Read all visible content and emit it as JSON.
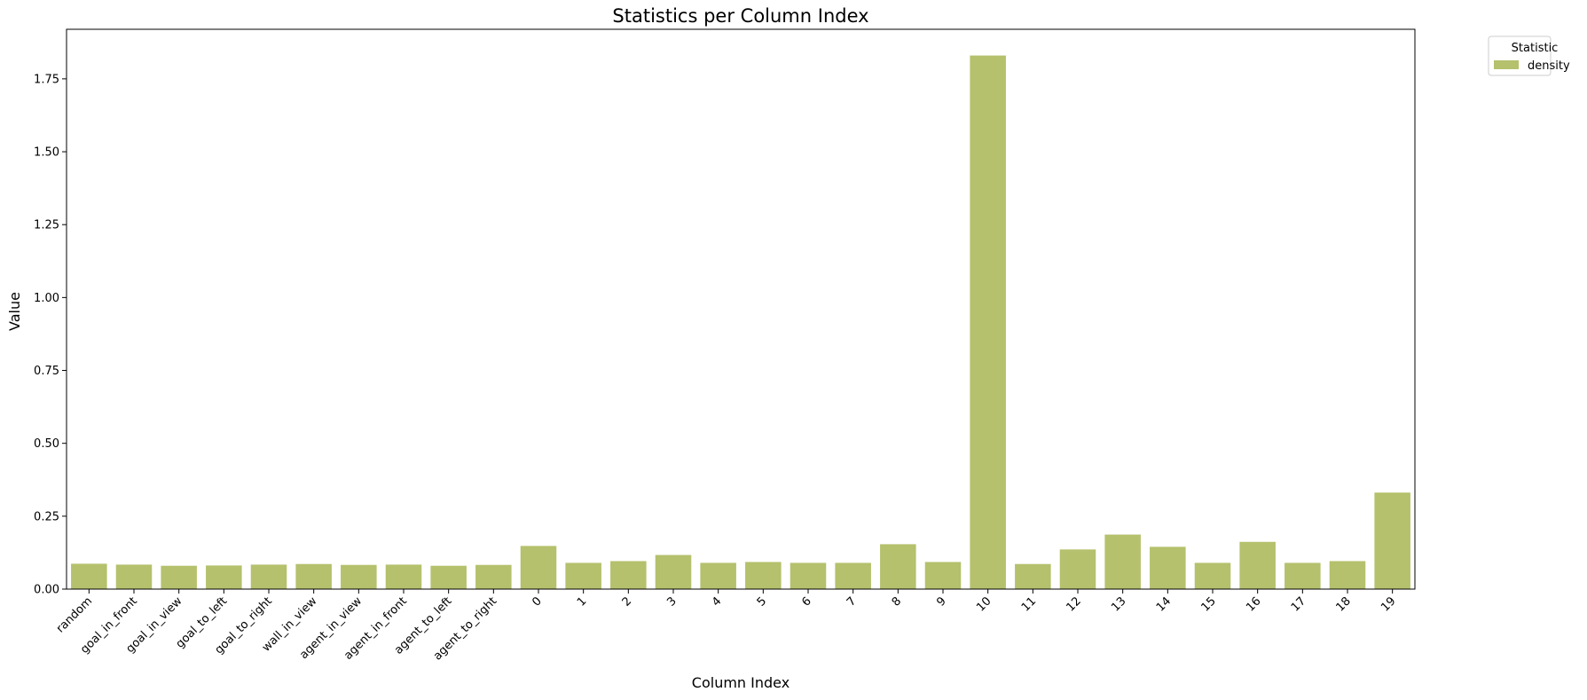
{
  "chart_data": {
    "type": "bar",
    "title": "Statistics per Column Index",
    "xlabel": "Column Index",
    "ylabel": "Value",
    "ylim": [
      0,
      1.92
    ],
    "yticks": [
      "0.00",
      "0.25",
      "0.50",
      "0.75",
      "1.00",
      "1.25",
      "1.50",
      "1.75"
    ],
    "legend": {
      "title": "Statistic",
      "placement": "outside-top-right"
    },
    "grid": false,
    "categories": [
      "random",
      "goal_in_front",
      "goal_in_view",
      "goal_to_left",
      "goal_to_right",
      "wall_in_view",
      "agent_in_view",
      "agent_in_front",
      "agent_to_left",
      "agent_to_right",
      "0",
      "1",
      "2",
      "3",
      "4",
      "5",
      "6",
      "7",
      "8",
      "9",
      "10",
      "11",
      "12",
      "13",
      "14",
      "15",
      "16",
      "17",
      "18",
      "19"
    ],
    "series": [
      {
        "name": "density",
        "color": "#b5c16c",
        "values": [
          0.087,
          0.084,
          0.08,
          0.081,
          0.084,
          0.086,
          0.083,
          0.084,
          0.08,
          0.083,
          0.148,
          0.09,
          0.096,
          0.117,
          0.09,
          0.093,
          0.09,
          0.09,
          0.154,
          0.093,
          1.83,
          0.086,
          0.136,
          0.187,
          0.145,
          0.09,
          0.162,
          0.09,
          0.096,
          0.331
        ]
      }
    ]
  }
}
